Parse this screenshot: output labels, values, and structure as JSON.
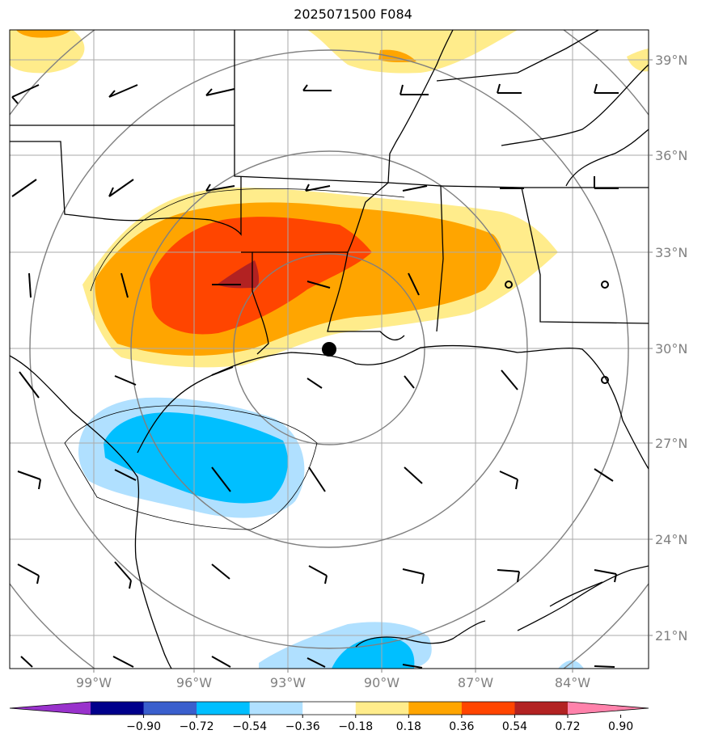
{
  "title": "2025071500 F084",
  "map": {
    "lon_labels": [
      "99°W",
      "96°W",
      "93°W",
      "90°W",
      "87°W",
      "84°W"
    ],
    "lat_labels": [
      "39°N",
      "36°N",
      "33°N",
      "30°N",
      "27°N",
      "24°N",
      "21°N"
    ]
  },
  "colorbar": {
    "tick_labels": [
      "−0.90",
      "−0.72",
      "−0.54",
      "−0.36",
      "−0.18",
      "0.18",
      "0.36",
      "0.54",
      "0.72",
      "0.90"
    ],
    "colors": [
      "#9932cc",
      "#00008b",
      "#3a5fcd",
      "#00bfff",
      "#b0e0ff",
      "#ffffff",
      "#ffec8b",
      "#ffa500",
      "#ff4500",
      "#b22222",
      "#ff82ab"
    ]
  },
  "colors": {
    "band_pos1": "#ffec8b",
    "band_pos2": "#ffa500",
    "band_pos3": "#ff4500",
    "band_pos4": "#b22222",
    "band_neg1": "#b0e0ff",
    "band_neg2": "#00bfff"
  }
}
